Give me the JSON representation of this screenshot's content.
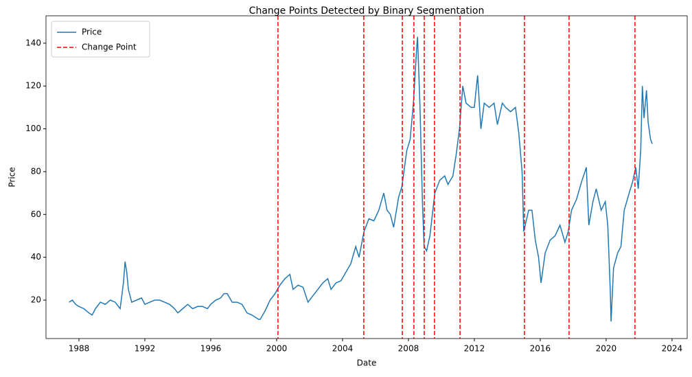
{
  "chart_data": {
    "type": "line",
    "title": "Change Points Detected by Binary Segmentation",
    "x_label": "Date",
    "y_label": "Price",
    "series": [
      {
        "name": "Price",
        "color": "#1f77b4",
        "x": [
          1987.4,
          1987.6,
          1987.8,
          1988.0,
          1988.3,
          1988.6,
          1988.8,
          1989.0,
          1989.3,
          1989.6,
          1989.9,
          1990.2,
          1990.5,
          1990.7,
          1990.8,
          1990.9,
          1991.0,
          1991.2,
          1991.5,
          1991.8,
          1992.0,
          1992.3,
          1992.6,
          1992.9,
          1993.2,
          1993.5,
          1993.8,
          1994.0,
          1994.3,
          1994.6,
          1994.9,
          1995.2,
          1995.5,
          1995.8,
          1996.0,
          1996.3,
          1996.6,
          1996.8,
          1997.0,
          1997.3,
          1997.6,
          1997.9,
          1998.2,
          1998.5,
          1998.9,
          1999.0,
          1999.3,
          1999.6,
          1999.9,
          2000.2,
          2000.5,
          2000.8,
          2001.0,
          2001.3,
          2001.6,
          2001.9,
          2002.2,
          2002.5,
          2002.8,
          2003.1,
          2003.3,
          2003.6,
          2003.9,
          2004.2,
          2004.5,
          2004.8,
          2005.0,
          2005.3,
          2005.6,
          2005.9,
          2006.2,
          2006.5,
          2006.7,
          2006.9,
          2007.1,
          2007.4,
          2007.6,
          2007.9,
          2008.1,
          2008.3,
          2008.5,
          2008.55,
          2008.7,
          2008.85,
          2008.95,
          2009.1,
          2009.3,
          2009.45,
          2009.6,
          2009.9,
          2010.2,
          2010.4,
          2010.7,
          2010.9,
          2011.1,
          2011.3,
          2011.5,
          2011.8,
          2012.0,
          2012.2,
          2012.4,
          2012.6,
          2012.9,
          2013.2,
          2013.4,
          2013.7,
          2013.9,
          2014.2,
          2014.5,
          2014.7,
          2014.9,
          2015.0,
          2015.3,
          2015.5,
          2015.7,
          2015.9,
          2016.05,
          2016.3,
          2016.6,
          2016.9,
          2017.2,
          2017.5,
          2017.7,
          2017.9,
          2018.2,
          2018.5,
          2018.8,
          2018.95,
          2019.2,
          2019.4,
          2019.7,
          2019.95,
          2020.1,
          2020.25,
          2020.3,
          2020.45,
          2020.7,
          2020.9,
          2021.1,
          2021.4,
          2021.6,
          2021.8,
          2021.95,
          2022.1,
          2022.2,
          2022.3,
          2022.45,
          2022.55,
          2022.7,
          2022.8
        ],
        "values": [
          19,
          20,
          18,
          17,
          16,
          14,
          13,
          16,
          19,
          18,
          20,
          19,
          16,
          28,
          38,
          33,
          25,
          19,
          20,
          21,
          18,
          19,
          20,
          20,
          19,
          18,
          16,
          14,
          16,
          18,
          16,
          17,
          17,
          16,
          18,
          20,
          21,
          23,
          23,
          19,
          19,
          18,
          14,
          13,
          11,
          11,
          15,
          20,
          23,
          27,
          30,
          32,
          25,
          27,
          26,
          19,
          22,
          25,
          28,
          30,
          25,
          28,
          29,
          33,
          37,
          45,
          40,
          52,
          58,
          57,
          62,
          70,
          62,
          60,
          54,
          68,
          73,
          90,
          95,
          112,
          138,
          143,
          110,
          65,
          45,
          43,
          50,
          60,
          70,
          76,
          78,
          74,
          78,
          88,
          100,
          120,
          112,
          110,
          110,
          125,
          100,
          112,
          110,
          112,
          102,
          112,
          110,
          108,
          110,
          98,
          80,
          52,
          62,
          62,
          48,
          40,
          28,
          42,
          48,
          50,
          55,
          47,
          52,
          62,
          67,
          75,
          82,
          55,
          66,
          72,
          62,
          66,
          55,
          25,
          10,
          35,
          42,
          45,
          62,
          70,
          75,
          82,
          72,
          90,
          120,
          105,
          118,
          103,
          95,
          93
        ]
      }
    ],
    "change_points": {
      "name": "Change Point",
      "color": "#ff0000",
      "x": [
        2000.08,
        2005.29,
        2007.63,
        2008.33,
        2008.96,
        2009.58,
        2011.13,
        2015.04,
        2017.75,
        2021.75
      ]
    },
    "xlim": [
      1986.0,
      2024.92
    ],
    "xticks": [
      1988,
      1992,
      1996,
      2000,
      2004,
      2008,
      2012,
      2016,
      2020,
      2024
    ],
    "ylim": [
      2.03,
      152.8
    ],
    "yticks": [
      20,
      40,
      60,
      80,
      100,
      120,
      140
    ],
    "grid": false,
    "legend": "upper left"
  }
}
